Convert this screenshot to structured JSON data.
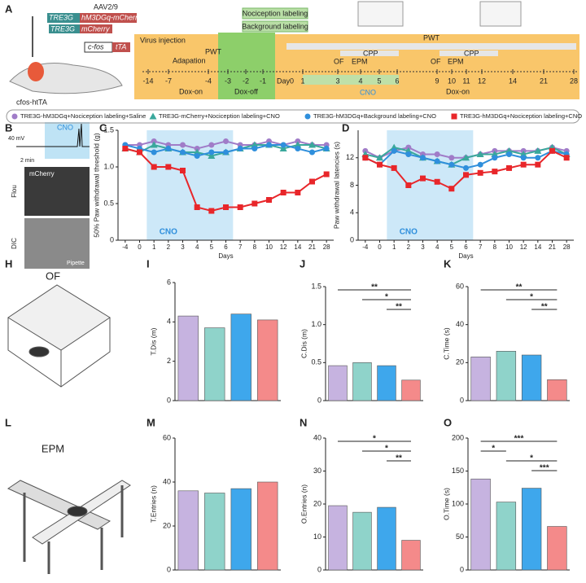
{
  "figure": {
    "panel_letters": [
      "A",
      "B",
      "C",
      "D",
      "H",
      "I",
      "J",
      "K",
      "L",
      "M",
      "N",
      "O"
    ],
    "construct": {
      "aav": "AAV2/9",
      "promoter1": "TRE3G",
      "gene1": "hM3DGq-mCherry",
      "promoter2": "TRE3G",
      "gene2": "mCherry",
      "cfos": "c-fos",
      "tta": "tTA",
      "mouse": "cfos-htTA"
    },
    "timeline": {
      "labels": [
        "Nociception labeling",
        "Background labeling",
        "Virus injection",
        "Adapation",
        "PWT",
        "Dox-on",
        "Dox-off",
        "Day0",
        "PWT",
        "CPP",
        "OF",
        "EPM",
        "CPP",
        "OF",
        "EPM",
        "Dox-on",
        "CNO"
      ],
      "days": [
        -14,
        -7,
        -4,
        -3,
        -2,
        -1,
        1,
        3,
        4,
        5,
        6,
        9,
        10,
        11,
        12,
        14,
        21,
        28
      ]
    },
    "panel_b": {
      "cno": "CNO",
      "scale_v": "40 mV",
      "scale_t": "2 min",
      "mcherry": "mCherry",
      "flou": "Flou",
      "dic": "DIC",
      "pipette": "Pipette"
    },
    "panel_h": "OF",
    "panel_l": "EPM"
  },
  "chart_data": [
    {
      "type": "line",
      "ylabel": "50% Paw withdrawal threshold (g)",
      "xlabel": "Days",
      "annotation": "CNO",
      "categories": [
        "-4",
        "0",
        "1",
        "2",
        "3",
        "4",
        "5",
        "6",
        "7",
        "8",
        "10",
        "12",
        "14",
        "21",
        "28"
      ],
      "ylim": [
        0,
        1.5
      ],
      "yticks": [
        0,
        0.5,
        {
          "value": 1,
          "label": "1.0"
        },
        1.5
      ],
      "series": [
        {
          "name": "TRE3G-hM3DGq+Nociception labeling+Saline",
          "color": "#a07cc8",
          "marker": "circle",
          "values": [
            1.3,
            1.3,
            1.35,
            1.3,
            1.3,
            1.25,
            1.3,
            1.35,
            1.3,
            1.3,
            1.35,
            1.3,
            1.35,
            1.3,
            1.3
          ]
        },
        {
          "name": "TRE3G-mCherry+Nociception labeling+CNO",
          "color": "#3aa89c",
          "marker": "triangle",
          "values": [
            1.25,
            1.2,
            1.3,
            1.25,
            1.2,
            1.2,
            1.15,
            1.2,
            1.25,
            1.3,
            1.3,
            1.25,
            1.3,
            1.3,
            1.25
          ]
        },
        {
          "name": "TRE3G-hM3DGq+Background labeling+CNO",
          "color": "#2f8fdc",
          "marker": "circle",
          "values": [
            1.3,
            1.25,
            1.2,
            1.25,
            1.2,
            1.15,
            1.2,
            1.2,
            1.25,
            1.25,
            1.3,
            1.3,
            1.25,
            1.2,
            1.25
          ]
        },
        {
          "name": "TRE3G-hM3DGq+Nociception labeling+CNO",
          "color": "#e8262a",
          "marker": "square",
          "values": [
            1.25,
            1.2,
            1.0,
            1.0,
            0.95,
            0.45,
            0.4,
            0.45,
            0.45,
            0.5,
            0.55,
            0.65,
            0.65,
            0.8,
            0.9
          ]
        }
      ]
    },
    {
      "type": "line",
      "ylabel": "Paw withdrawal latencies (s)",
      "xlabel": "Days",
      "annotation": "CNO",
      "categories": [
        "-4",
        "0",
        "1",
        "2",
        "3",
        "4",
        "5",
        "6",
        "7",
        "8",
        "10",
        "12",
        "14",
        "21",
        "28"
      ],
      "ylim": [
        0,
        16
      ],
      "yticks": [
        0,
        4,
        8,
        12
      ],
      "series": [
        {
          "color": "#a07cc8",
          "marker": "circle",
          "values": [
            13,
            12,
            13,
            13.5,
            12.5,
            12.5,
            12,
            12,
            12.5,
            13,
            13,
            13,
            13,
            13.5,
            13
          ]
        },
        {
          "color": "#3aa89c",
          "marker": "triangle",
          "values": [
            12.5,
            12,
            13.5,
            13,
            12,
            11.5,
            11,
            12,
            12.5,
            12.5,
            13,
            12.5,
            13,
            13.5,
            12.5
          ]
        },
        {
          "color": "#2f8fdc",
          "marker": "circle",
          "values": [
            12,
            11,
            13,
            12.5,
            12,
            11.5,
            11,
            10.5,
            11,
            12,
            12.5,
            12,
            12,
            13,
            12.5
          ]
        },
        {
          "color": "#e8262a",
          "marker": "square",
          "values": [
            12,
            11,
            10.5,
            8,
            9,
            8.5,
            7.5,
            9.5,
            9.8,
            10,
            10.5,
            11,
            11,
            13,
            12
          ]
        }
      ]
    },
    {
      "type": "bar",
      "ylabel": "T.Dis (m)",
      "values": [
        4.3,
        3.7,
        4.4,
        4.1
      ],
      "colors": [
        "#c6b3e0",
        "#8fd3ca",
        "#3ea7ec",
        "#f48a8a"
      ],
      "ylim": [
        0,
        6
      ],
      "yticks": [
        0,
        2,
        4,
        6
      ],
      "annotations": []
    },
    {
      "type": "bar",
      "ylabel": "C.Dis (m)",
      "values": [
        0.46,
        0.5,
        0.46,
        0.27
      ],
      "colors": [
        "#c6b3e0",
        "#8fd3ca",
        "#3ea7ec",
        "#f48a8a"
      ],
      "ylim": [
        0,
        1.5
      ],
      "yticks": [
        0,
        0.5,
        {
          "value": 1,
          "label": "1.0"
        },
        1.5
      ],
      "annotations": [
        {
          "text": "**",
          "between": [
            0,
            3
          ]
        },
        {
          "text": "*",
          "between": [
            1,
            3
          ]
        },
        {
          "text": "**",
          "between": [
            2,
            3
          ]
        }
      ]
    },
    {
      "type": "bar",
      "ylabel": "C.Time (s)",
      "values": [
        23,
        26,
        24,
        11
      ],
      "colors": [
        "#c6b3e0",
        "#8fd3ca",
        "#3ea7ec",
        "#f48a8a"
      ],
      "ylim": [
        0,
        60
      ],
      "yticks": [
        0,
        20,
        40,
        60
      ],
      "annotations": [
        {
          "text": "**",
          "between": [
            0,
            3
          ]
        },
        {
          "text": "*",
          "between": [
            1,
            3
          ]
        },
        {
          "text": "**",
          "between": [
            2,
            3
          ]
        }
      ]
    },
    {
      "type": "bar",
      "ylabel": "T.Entries (n)",
      "values": [
        36,
        35,
        37,
        40
      ],
      "colors": [
        "#c6b3e0",
        "#8fd3ca",
        "#3ea7ec",
        "#f48a8a"
      ],
      "ylim": [
        0,
        60
      ],
      "yticks": [
        0,
        20,
        40,
        60
      ],
      "annotations": []
    },
    {
      "type": "bar",
      "ylabel": "O.Entries (n)",
      "values": [
        19.5,
        17.5,
        19,
        9
      ],
      "colors": [
        "#c6b3e0",
        "#8fd3ca",
        "#3ea7ec",
        "#f48a8a"
      ],
      "ylim": [
        0,
        40
      ],
      "yticks": [
        0,
        10,
        20,
        30,
        40
      ],
      "annotations": [
        {
          "text": "*",
          "between": [
            0,
            3
          ]
        },
        {
          "text": "*",
          "between": [
            1,
            3
          ]
        },
        {
          "text": "**",
          "between": [
            2,
            3
          ]
        }
      ]
    },
    {
      "type": "bar",
      "ylabel": "O.Time (s)",
      "values": [
        138,
        103,
        124,
        66
      ],
      "colors": [
        "#c6b3e0",
        "#8fd3ca",
        "#3ea7ec",
        "#f48a8a"
      ],
      "ylim": [
        0,
        200
      ],
      "yticks": [
        0,
        50,
        100,
        150,
        200
      ],
      "annotations": [
        {
          "text": "***",
          "between": [
            0,
            3
          ]
        },
        {
          "text": "*",
          "between": [
            0,
            1
          ]
        },
        {
          "text": "*",
          "between": [
            1,
            3
          ]
        },
        {
          "text": "***",
          "between": [
            2,
            3
          ]
        }
      ]
    }
  ]
}
